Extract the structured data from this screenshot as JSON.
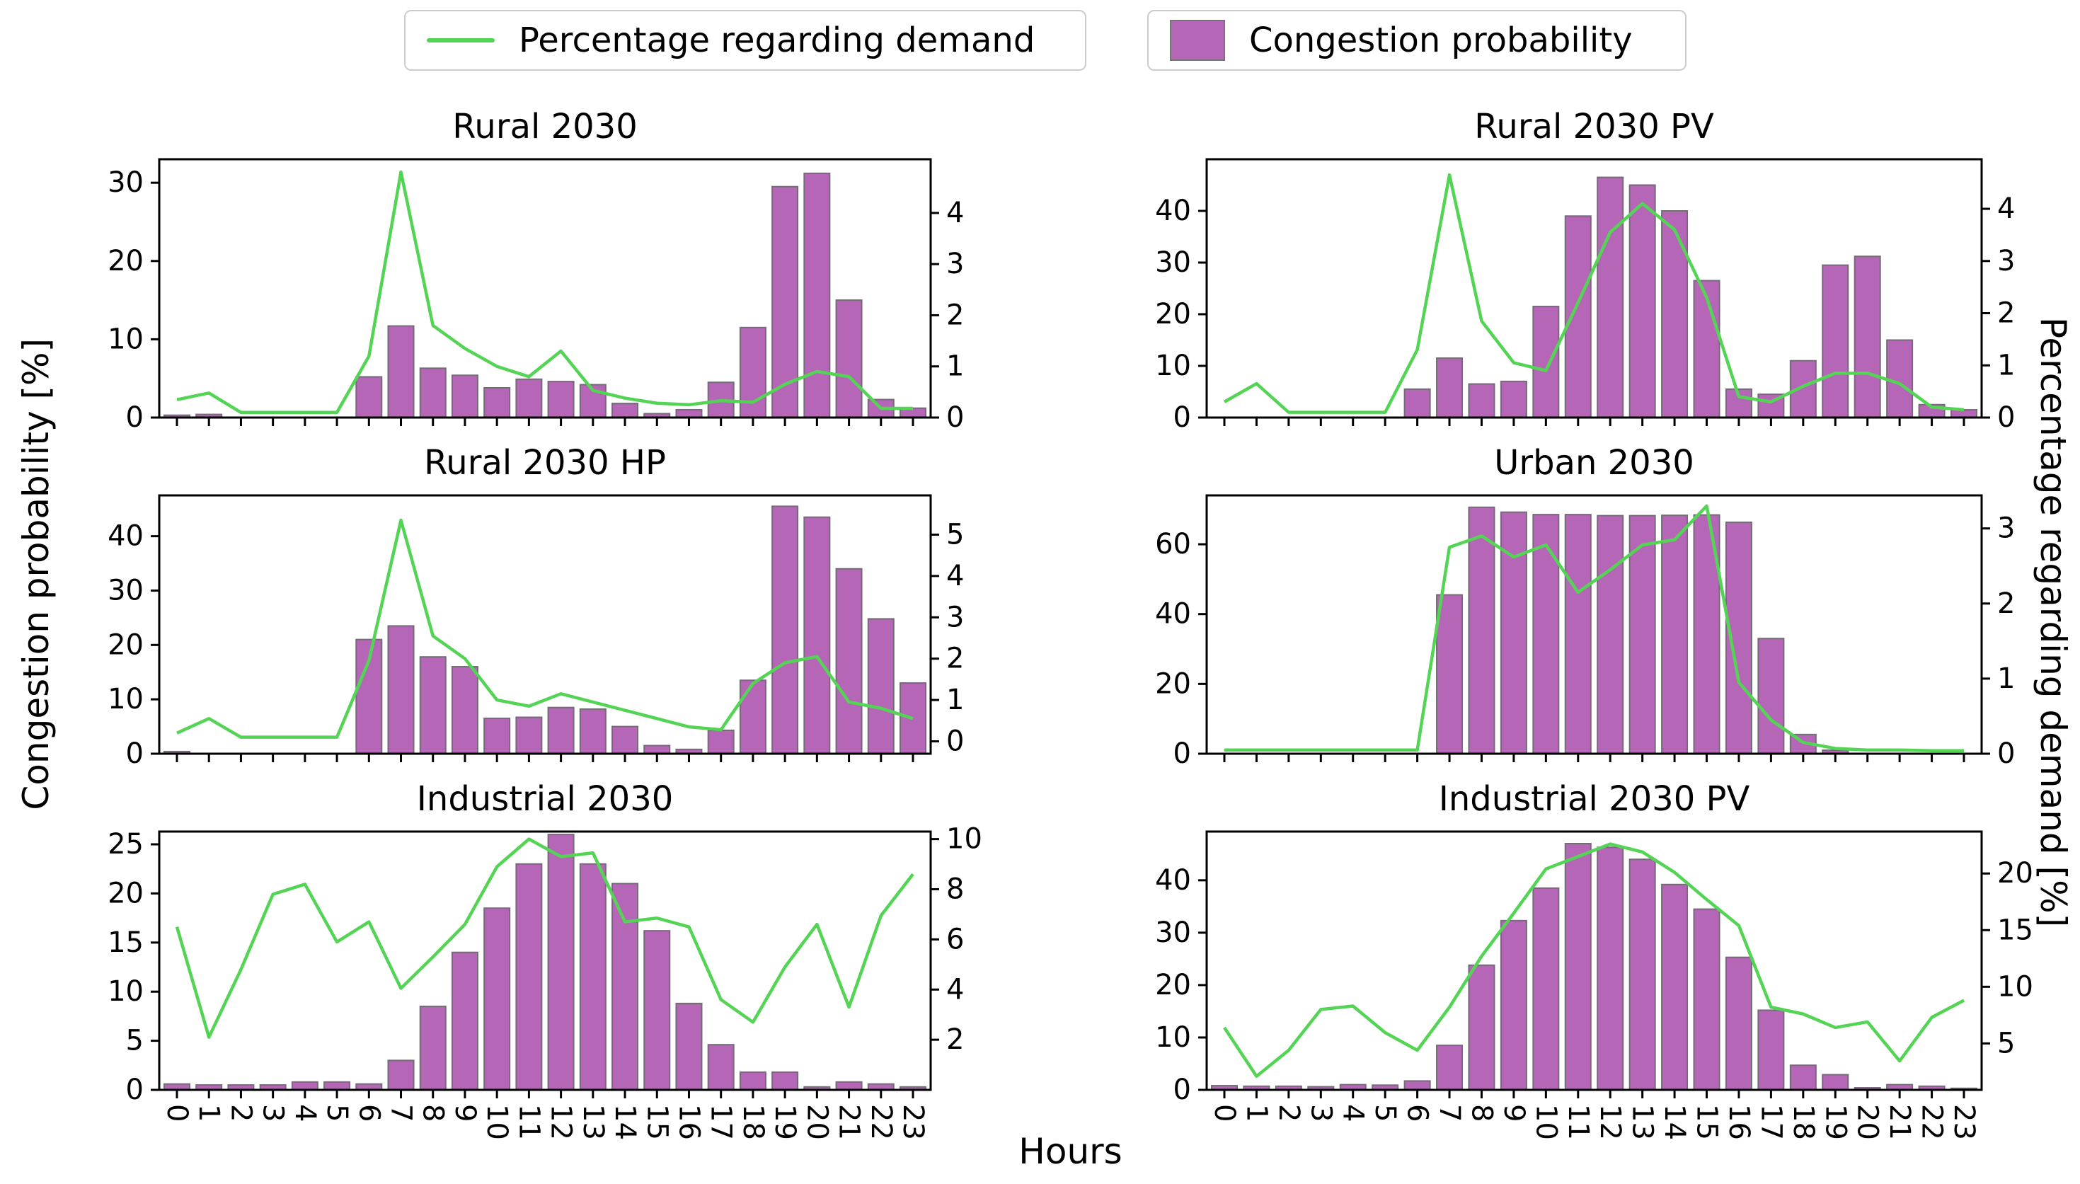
{
  "legend": {
    "line_label": "Percentage regarding demand",
    "bar_label": "Congestion probability"
  },
  "labels": {
    "left_y": "Congestion probability [%]",
    "right_y": "Percentage regarding demand [%]",
    "x": "Hours"
  },
  "colors": {
    "bar_fill": "#b566b7",
    "bar_edge": "#756a78",
    "line": "#54d454",
    "axis": "#000000",
    "legend_border": "#cccccc"
  },
  "chart_data": [
    {
      "type": "bar+line",
      "title": "Rural 2030",
      "x": [
        0,
        1,
        2,
        3,
        4,
        5,
        6,
        7,
        8,
        9,
        10,
        11,
        12,
        13,
        14,
        15,
        16,
        17,
        18,
        19,
        20,
        21,
        22,
        23
      ],
      "show_x_labels": false,
      "bar_series": {
        "name": "Congestion probability",
        "axis": "left",
        "values": [
          0.3,
          0.4,
          0,
          0,
          0,
          0,
          5.2,
          11.7,
          6.3,
          5.4,
          3.8,
          4.9,
          4.6,
          4.2,
          1.8,
          0.5,
          1.0,
          4.5,
          11.5,
          29.5,
          31.2,
          15.0,
          2.3,
          1.2
        ]
      },
      "line_series": {
        "name": "Percentage regarding demand",
        "axis": "right",
        "values": [
          0.35,
          0.48,
          0.1,
          0.1,
          0.1,
          0.1,
          1.2,
          4.8,
          1.8,
          1.35,
          1.0,
          0.8,
          1.3,
          0.53,
          0.38,
          0.28,
          0.25,
          0.33,
          0.3,
          0.65,
          0.9,
          0.8,
          0.18,
          0.18
        ]
      },
      "left_axis": {
        "ticks": [
          0,
          10,
          20,
          30
        ],
        "lim": [
          0,
          33
        ]
      },
      "right_axis": {
        "ticks": [
          0,
          1,
          2,
          3,
          4
        ],
        "lim": [
          0,
          5.05
        ]
      }
    },
    {
      "type": "bar+line",
      "title": "Rural 2030 PV",
      "x": [
        0,
        1,
        2,
        3,
        4,
        5,
        6,
        7,
        8,
        9,
        10,
        11,
        12,
        13,
        14,
        15,
        16,
        17,
        18,
        19,
        20,
        21,
        22,
        23
      ],
      "show_x_labels": false,
      "bar_series": {
        "name": "Congestion probability",
        "axis": "left",
        "values": [
          0,
          0,
          0,
          0,
          0,
          0,
          5.5,
          11.5,
          6.5,
          7.0,
          21.5,
          39.0,
          46.5,
          45.0,
          40.0,
          26.5,
          5.5,
          4.5,
          11.0,
          29.5,
          31.2,
          15.0,
          2.5,
          1.5
        ]
      },
      "line_series": {
        "name": "Percentage regarding demand",
        "axis": "right",
        "values": [
          0.3,
          0.65,
          0.1,
          0.1,
          0.1,
          0.1,
          1.3,
          4.65,
          1.85,
          1.05,
          0.9,
          2.2,
          3.55,
          4.1,
          3.6,
          2.3,
          0.4,
          0.3,
          0.6,
          0.85,
          0.85,
          0.65,
          0.2,
          0.15
        ]
      },
      "left_axis": {
        "ticks": [
          0,
          10,
          20,
          30,
          40
        ],
        "lim": [
          0,
          50
        ]
      },
      "right_axis": {
        "ticks": [
          0,
          1,
          2,
          3,
          4
        ],
        "lim": [
          0,
          4.95
        ]
      }
    },
    {
      "type": "bar+line",
      "title": "Rural 2030 HP",
      "x": [
        0,
        1,
        2,
        3,
        4,
        5,
        6,
        7,
        8,
        9,
        10,
        11,
        12,
        13,
        14,
        15,
        16,
        17,
        18,
        19,
        20,
        21,
        22,
        23
      ],
      "show_x_labels": false,
      "bar_series": {
        "name": "Congestion probability",
        "axis": "left",
        "values": [
          0.4,
          0,
          0,
          0,
          0,
          0,
          21.0,
          23.5,
          17.8,
          16.0,
          6.5,
          6.7,
          8.5,
          8.2,
          5.0,
          1.5,
          0.8,
          4.3,
          13.5,
          45.5,
          43.5,
          34.0,
          24.8,
          13.0
        ]
      },
      "line_series": {
        "name": "Percentage regarding demand",
        "axis": "right",
        "values": [
          0.2,
          0.55,
          0.1,
          0.1,
          0.1,
          0.1,
          1.95,
          5.35,
          2.55,
          2.0,
          1.0,
          0.85,
          1.15,
          0.95,
          0.75,
          0.55,
          0.35,
          0.28,
          1.4,
          1.9,
          2.05,
          0.95,
          0.8,
          0.55
        ]
      },
      "left_axis": {
        "ticks": [
          0,
          10,
          20,
          30,
          40
        ],
        "lim": [
          0,
          47.5
        ]
      },
      "right_axis": {
        "ticks": [
          0,
          1,
          2,
          3,
          4,
          5
        ],
        "lim": [
          -0.3,
          5.95
        ]
      }
    },
    {
      "type": "bar+line",
      "title": "Urban 2030",
      "x": [
        0,
        1,
        2,
        3,
        4,
        5,
        6,
        7,
        8,
        9,
        10,
        11,
        12,
        13,
        14,
        15,
        16,
        17,
        18,
        19,
        20,
        21,
        22,
        23
      ],
      "show_x_labels": false,
      "bar_series": {
        "name": "Congestion probability",
        "axis": "left",
        "values": [
          0,
          0,
          0,
          0,
          0,
          0,
          0,
          45.5,
          70.6,
          69.2,
          68.5,
          68.5,
          68.2,
          68.2,
          68.3,
          68.4,
          66.3,
          33.0,
          5.5,
          1.0,
          0,
          0,
          0,
          0
        ]
      },
      "line_series": {
        "name": "Percentage regarding demand",
        "axis": "right",
        "values": [
          0.05,
          0.05,
          0.05,
          0.05,
          0.05,
          0.05,
          0.05,
          2.75,
          2.9,
          2.62,
          2.78,
          2.15,
          2.45,
          2.78,
          2.85,
          3.3,
          0.95,
          0.45,
          0.15,
          0.07,
          0.05,
          0.05,
          0.04,
          0.04
        ]
      },
      "left_axis": {
        "ticks": [
          0,
          20,
          40,
          60
        ],
        "lim": [
          0,
          74
        ]
      },
      "right_axis": {
        "ticks": [
          0,
          1,
          2,
          3
        ],
        "lim": [
          0,
          3.44
        ]
      }
    },
    {
      "type": "bar+line",
      "title": "Industrial 2030",
      "x": [
        0,
        1,
        2,
        3,
        4,
        5,
        6,
        7,
        8,
        9,
        10,
        11,
        12,
        13,
        14,
        15,
        16,
        17,
        18,
        19,
        20,
        21,
        22,
        23
      ],
      "show_x_labels": true,
      "bar_series": {
        "name": "Congestion probability",
        "axis": "left",
        "values": [
          0.6,
          0.5,
          0.5,
          0.5,
          0.8,
          0.8,
          0.6,
          3.0,
          8.5,
          14.0,
          18.5,
          23.0,
          26.0,
          23.0,
          21.0,
          16.2,
          8.8,
          4.6,
          1.8,
          1.8,
          0.3,
          0.8,
          0.6,
          0.3
        ]
      },
      "line_series": {
        "name": "Percentage regarding demand",
        "axis": "right",
        "values": [
          6.5,
          2.1,
          4.8,
          7.8,
          8.2,
          5.9,
          6.7,
          4.05,
          5.3,
          6.6,
          8.9,
          10.0,
          9.3,
          9.45,
          6.7,
          6.85,
          6.5,
          3.6,
          2.7,
          4.9,
          6.6,
          3.3,
          6.95,
          8.6
        ]
      },
      "left_axis": {
        "ticks": [
          0,
          5,
          10,
          15,
          20,
          25
        ],
        "lim": [
          0,
          26.3
        ]
      },
      "right_axis": {
        "ticks": [
          2,
          4,
          6,
          8,
          10
        ],
        "lim": [
          0,
          10.3
        ]
      }
    },
    {
      "type": "bar+line",
      "title": "Industrial 2030 PV",
      "x": [
        0,
        1,
        2,
        3,
        4,
        5,
        6,
        7,
        8,
        9,
        10,
        11,
        12,
        13,
        14,
        15,
        16,
        17,
        18,
        19,
        20,
        21,
        22,
        23
      ],
      "show_x_labels": true,
      "bar_series": {
        "name": "Congestion probability",
        "axis": "left",
        "values": [
          0.8,
          0.7,
          0.7,
          0.6,
          1.0,
          0.9,
          1.7,
          8.5,
          23.8,
          32.3,
          38.5,
          47.0,
          46.3,
          44.0,
          39.2,
          34.5,
          25.3,
          15.2,
          4.7,
          2.9,
          0.4,
          1.0,
          0.7,
          0.3
        ]
      },
      "line_series": {
        "name": "Percentage regarding demand",
        "axis": "right",
        "values": [
          6.4,
          2.1,
          4.4,
          8.0,
          8.3,
          5.95,
          4.4,
          8.2,
          12.7,
          16.5,
          20.4,
          21.5,
          22.6,
          21.9,
          20.1,
          17.7,
          15.4,
          8.2,
          7.6,
          6.4,
          6.9,
          3.45,
          7.3,
          8.8
        ]
      },
      "left_axis": {
        "ticks": [
          0,
          10,
          20,
          30,
          40
        ],
        "lim": [
          0,
          49.3
        ]
      },
      "right_axis": {
        "ticks": [
          5,
          10,
          15,
          20
        ],
        "lim": [
          0.9,
          23.7
        ]
      }
    }
  ]
}
